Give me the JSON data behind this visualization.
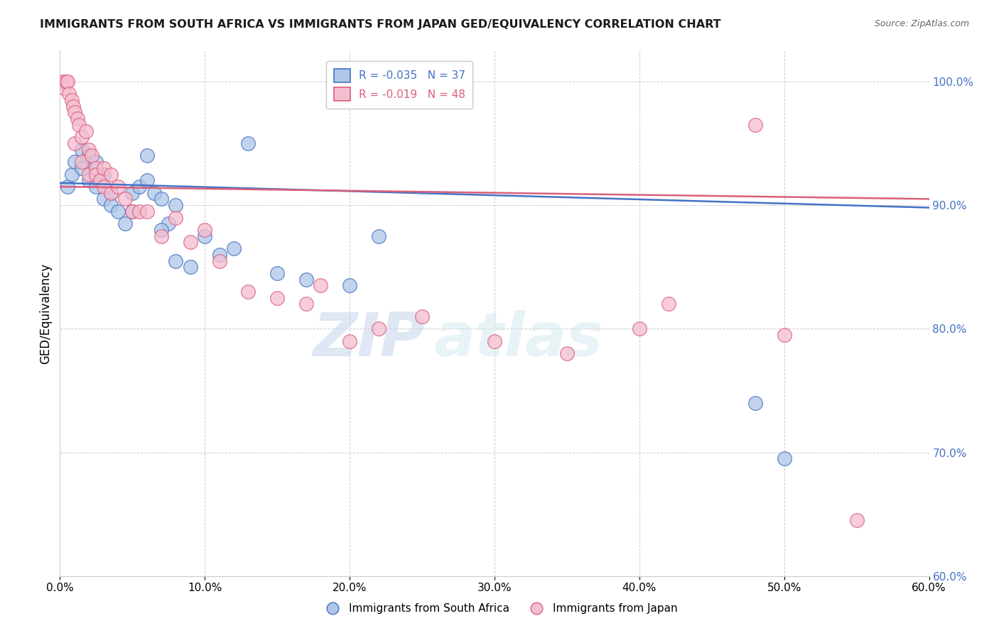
{
  "title": "IMMIGRANTS FROM SOUTH AFRICA VS IMMIGRANTS FROM JAPAN GED/EQUIVALENCY CORRELATION CHART",
  "source": "Source: ZipAtlas.com",
  "ylabel": "GED/Equivalency",
  "yticks": [
    60.0,
    70.0,
    80.0,
    90.0,
    100.0
  ],
  "xticks": [
    0.0,
    10.0,
    20.0,
    30.0,
    40.0,
    50.0,
    60.0
  ],
  "legend_blue": "R = -0.035   N = 37",
  "legend_pink": "R = -0.019   N = 48",
  "legend_label_blue": "Immigrants from South Africa",
  "legend_label_pink": "Immigrants from Japan",
  "blue_color": "#aec6e8",
  "pink_color": "#f5bdd0",
  "blue_line_color": "#4472c4",
  "pink_line_color": "#d9607a",
  "watermark_zip": "ZIP",
  "watermark_atlas": "atlas",
  "blue_scatter_x": [
    0.5,
    0.8,
    1.0,
    1.5,
    1.5,
    2.0,
    2.0,
    2.5,
    2.5,
    3.0,
    3.0,
    3.5,
    3.5,
    4.0,
    4.5,
    5.0,
    5.0,
    5.5,
    6.0,
    6.0,
    6.5,
    7.0,
    7.5,
    8.0,
    9.0,
    10.0,
    11.0,
    12.0,
    13.0,
    15.0,
    17.0,
    20.0,
    22.0,
    48.0,
    50.0,
    7.0,
    8.0
  ],
  "blue_scatter_y": [
    91.5,
    92.5,
    93.5,
    94.5,
    93.0,
    92.0,
    94.0,
    93.5,
    91.5,
    90.5,
    92.5,
    91.0,
    90.0,
    89.5,
    88.5,
    91.0,
    89.5,
    91.5,
    94.0,
    92.0,
    91.0,
    90.5,
    88.5,
    85.5,
    85.0,
    87.5,
    86.0,
    86.5,
    95.0,
    84.5,
    84.0,
    83.5,
    87.5,
    74.0,
    69.5,
    88.0,
    90.0
  ],
  "pink_scatter_x": [
    0.2,
    0.3,
    0.4,
    0.5,
    0.6,
    0.8,
    0.9,
    1.0,
    1.0,
    1.2,
    1.3,
    1.5,
    1.5,
    1.8,
    2.0,
    2.0,
    2.2,
    2.5,
    2.5,
    2.8,
    3.0,
    3.0,
    3.5,
    3.5,
    4.0,
    4.5,
    5.0,
    5.5,
    6.0,
    7.0,
    8.0,
    9.0,
    10.0,
    11.0,
    13.0,
    15.0,
    17.0,
    18.0,
    20.0,
    22.0,
    25.0,
    30.0,
    35.0,
    40.0,
    42.0,
    48.0,
    50.0,
    55.0
  ],
  "pink_scatter_y": [
    100.0,
    99.5,
    100.0,
    100.0,
    99.0,
    98.5,
    98.0,
    97.5,
    95.0,
    97.0,
    96.5,
    95.5,
    93.5,
    96.0,
    94.5,
    92.5,
    94.0,
    93.0,
    92.5,
    92.0,
    91.5,
    93.0,
    92.5,
    91.0,
    91.5,
    90.5,
    89.5,
    89.5,
    89.5,
    87.5,
    89.0,
    87.0,
    88.0,
    85.5,
    83.0,
    82.5,
    82.0,
    83.5,
    79.0,
    80.0,
    81.0,
    79.0,
    78.0,
    80.0,
    82.0,
    96.5,
    79.5,
    64.5
  ],
  "xmin": 0.0,
  "xmax": 60.0,
  "ymin": 60.0,
  "ymax": 102.5
}
